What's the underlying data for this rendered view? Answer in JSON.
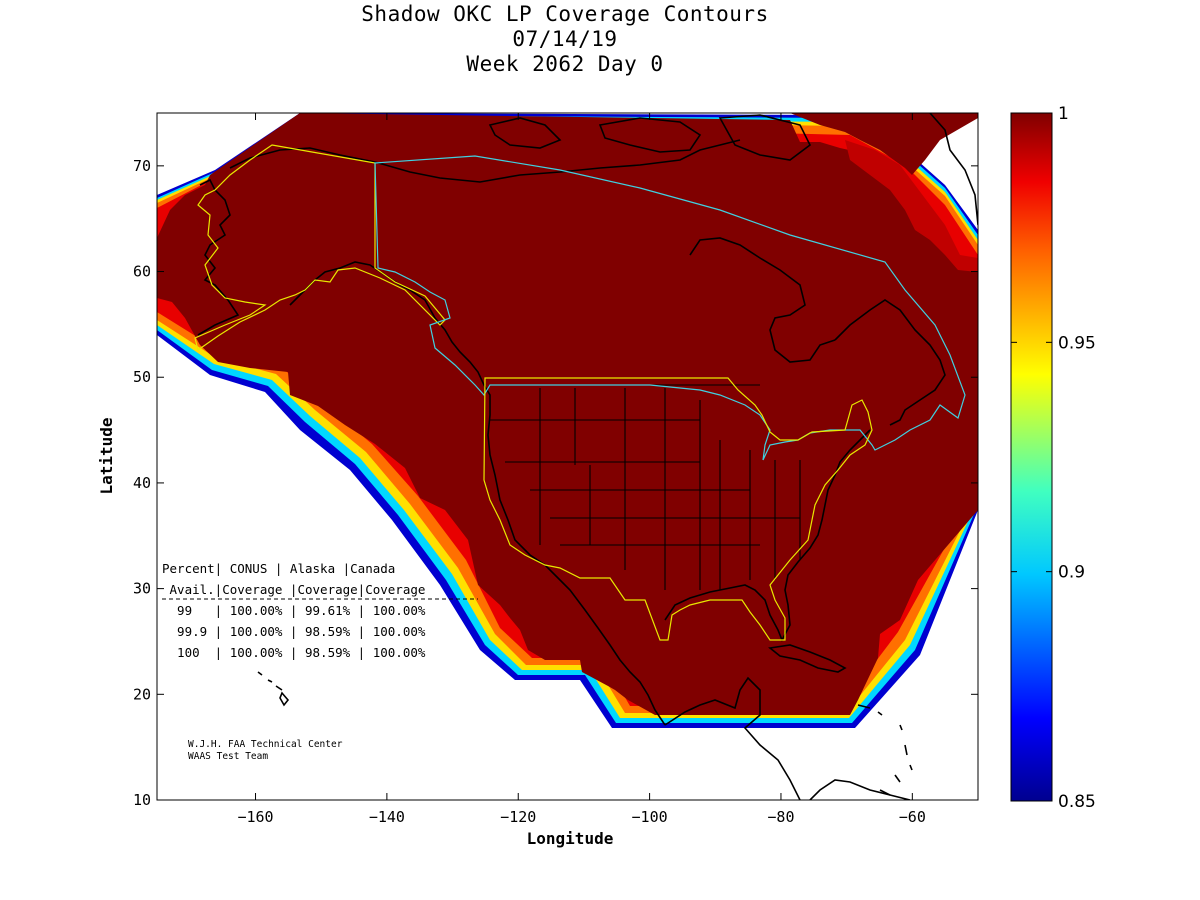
{
  "title": {
    "line1": "Shadow OKC LP Coverage Contours",
    "line2": "07/14/19",
    "line3": "Week 2062 Day 0"
  },
  "chart_data": {
    "type": "heatmap",
    "xlabel": "Longitude",
    "ylabel": "Latitude",
    "xlim": [
      -175,
      -50
    ],
    "ylim": [
      10,
      75
    ],
    "xticks": [
      -160,
      -140,
      -120,
      -100,
      -80,
      -60
    ],
    "yticks": [
      10,
      20,
      30,
      40,
      50,
      60,
      70
    ],
    "colorbar": {
      "range": [
        0.85,
        1
      ],
      "ticks": [
        0.85,
        0.9,
        0.95,
        1
      ],
      "tick_labels": [
        "0.85",
        "0.9",
        "0.95",
        "1"
      ]
    },
    "coverage_table": {
      "header1": "Percent| CONUS   | Alaska |Canada",
      "header2": " Avail.|Coverage |Coverage|Coverage",
      "rows": [
        "  99   | 100.00% | 99.61% | 100.00%",
        "  99.9 | 100.00% | 98.59% | 100.00%",
        "  100  | 100.00% | 98.59% | 100.00%"
      ]
    },
    "credit": {
      "line1": "W.J.H. FAA Technical Center",
      "line2": "WAAS Test Team"
    },
    "colors": {
      "full_coverage": "#800000",
      "gradient": [
        "#800000",
        "#c00000",
        "#ff0000",
        "#ff8000",
        "#ffff00",
        "#00ffff",
        "#0080ff",
        "#0000ff",
        "#000080"
      ],
      "service_boundary": "#e8e800",
      "canada_boundary": "#40d0e0",
      "coastline": "#000000"
    }
  }
}
